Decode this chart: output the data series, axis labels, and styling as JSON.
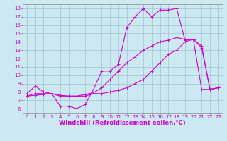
{
  "xlabel": "Windchill (Refroidissement éolien,°C)",
  "xlim": [
    -0.5,
    23.5
  ],
  "ylim": [
    5.5,
    18.5
  ],
  "xticks": [
    0,
    1,
    2,
    3,
    4,
    5,
    6,
    7,
    8,
    9,
    10,
    11,
    12,
    13,
    14,
    15,
    16,
    17,
    18,
    19,
    20,
    21,
    22,
    23
  ],
  "yticks": [
    6,
    7,
    8,
    9,
    10,
    11,
    12,
    13,
    14,
    15,
    16,
    17,
    18
  ],
  "bg_color": "#cce8f0",
  "line_color": "#cc00cc",
  "line1_x": [
    0,
    1,
    2,
    3,
    4,
    5,
    6,
    7,
    8,
    9,
    10,
    11,
    12,
    13,
    14,
    15,
    16,
    17,
    18,
    19,
    20,
    21,
    22,
    23
  ],
  "line1_y": [
    7.8,
    8.7,
    8.0,
    7.8,
    6.3,
    6.3,
    6.0,
    6.5,
    8.3,
    10.5,
    10.5,
    11.3,
    15.7,
    17.0,
    18.0,
    17.0,
    17.8,
    17.8,
    18.0,
    14.2,
    14.3,
    13.3,
    8.3,
    8.5
  ],
  "line2_x": [
    0,
    1,
    2,
    3,
    4,
    5,
    6,
    7,
    8,
    9,
    10,
    11,
    12,
    13,
    14,
    15,
    16,
    17,
    18,
    19,
    20,
    21,
    22,
    23
  ],
  "line2_y": [
    7.5,
    7.8,
    7.8,
    7.8,
    7.5,
    7.5,
    7.5,
    7.5,
    7.8,
    7.8,
    8.0,
    8.2,
    8.5,
    9.0,
    9.5,
    10.5,
    11.5,
    12.5,
    13.0,
    14.0,
    14.3,
    8.3,
    8.3,
    8.5
  ],
  "line3_x": [
    0,
    1,
    2,
    3,
    4,
    5,
    6,
    7,
    8,
    9,
    10,
    11,
    12,
    13,
    14,
    15,
    16,
    17,
    18,
    19,
    20,
    21,
    22,
    23
  ],
  "line3_y": [
    7.5,
    7.6,
    7.7,
    7.8,
    7.6,
    7.5,
    7.5,
    7.7,
    7.9,
    8.5,
    9.5,
    10.5,
    11.5,
    12.2,
    13.0,
    13.5,
    14.0,
    14.2,
    14.5,
    14.3,
    14.3,
    13.5,
    8.3,
    8.5
  ],
  "marker": "+",
  "markersize": 3,
  "linewidth": 0.8,
  "tick_fontsize": 5,
  "label_fontsize": 6,
  "grid_color": "#99bbcc",
  "grid_linewidth": 0.4
}
